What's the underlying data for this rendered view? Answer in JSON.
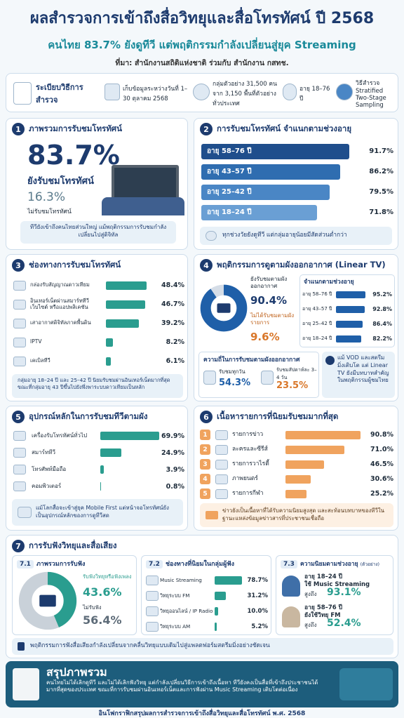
{
  "header": {
    "title": "ผลสำรวจการเข้าถึงสื่อวิทยุและสื่อโทรทัศน์ ปี 2568",
    "subtitle": "คนไทย 83.7% ยังดูทีวี แต่พฤติกรรมกำลังเปลี่ยนสู่ยุค Streaming",
    "source": "ที่มา: สำนักงานสถิติแห่งชาติ ร่วมกับ สำนักงาน กสทช."
  },
  "method": {
    "label": "ระเบียบวิธีการสำรวจ",
    "items": [
      "เก็บข้อมูลระหว่างวันที่ 1–30 ตุลาคม 2568",
      "กลุ่มตัวอย่าง 31,500 คน จาก 3,150 พื้นที่ตัวอย่างทั่วประเทศ",
      "อายุ 18–76 ปี",
      "วิธีสำรวจ Stratified Two-Stage Sampling"
    ]
  },
  "overview": {
    "number": "1",
    "title": "ภาพรวมการรับชมโทรทัศน์",
    "watch": "83.7%",
    "watch_text": "ยังรับชมโทรทัศน์",
    "not_watch": "16.3%",
    "not_watch_text": "ไม่รับชมโทรทัศน์",
    "note": "ทีวียังเข้าถึงคนไทยส่วนใหญ่ แม้พฤติกรรมการรับชมกำลังเปลี่ยนไปสู่ดิจิทัล"
  },
  "by_age": {
    "number": "2",
    "title": "การรับชมโทรทัศน์ จำแนกตามช่วงอายุ",
    "colors": [
      "#1f4e8c",
      "#2f6db0",
      "#4a86c5",
      "#6a9fd4"
    ],
    "bars": [
      {
        "label": "อายุ 58–76 ปี",
        "value": 91.7,
        "value_label": "91.7%"
      },
      {
        "label": "อายุ 43–57 ปี",
        "value": 86.2,
        "value_label": "86.2%"
      },
      {
        "label": "อายุ 25–42 ปี",
        "value": 79.5,
        "value_label": "79.5%"
      },
      {
        "label": "อายุ 18–24 ปี",
        "value": 71.8,
        "value_label": "71.8%"
      }
    ],
    "note": "ทุกช่วงวัยยังดูทีวี แต่กลุ่มอายุน้อยมีสัดส่วนต่ำกว่า"
  },
  "channels": {
    "number": "3",
    "title": "ช่องทางการรับชมโทรทัศน์",
    "color": "#2a9d8f",
    "bars": [
      {
        "label": "กล่องรับสัญญาณดาวเทียม",
        "value": 48.4,
        "value_label": "48.4%"
      },
      {
        "label": "อินเทอร์เน็ตผ่านสมาร์ททีวี เว็บไซต์ หรือแอปพลิเคชัน",
        "value": 46.7,
        "value_label": "46.7%"
      },
      {
        "label": "เสาอากาศดิจิทัลภาคพื้นดิน",
        "value": 39.2,
        "value_label": "39.2%"
      },
      {
        "label": "IPTV",
        "value": 8.2,
        "value_label": "8.2%"
      },
      {
        "label": "เคเบิลทีวี",
        "value": 6.1,
        "value_label": "6.1%"
      }
    ],
    "note": "กลุ่มอายุ 18–24 ปี และ 25–42 ปี นิยมรับชมผ่านอินเทอร์เน็ตมากที่สุด ขณะที่กลุ่มอายุ 43 ปีขึ้นไปยังพึ่งพาระบบดาวเทียมเป็นหลัก"
  },
  "linear": {
    "number": "4",
    "title": "พฤติกรรมการดูตามผังออกอากาศ (Linear TV)",
    "share_text": "ยังรับชมตามผังออกอากาศ",
    "share": {
      "value": 90.4,
      "label": "90.4%"
    },
    "other_text": "ไม่ได้รับชมตามผังรายการ",
    "other": {
      "value": 9.6,
      "label": "9.6%"
    },
    "colors": [
      "#1f5fa8",
      "#d5dde7"
    ],
    "age_title": "จำแนกตามช่วงอายุ",
    "age_color": "#1f5fa8",
    "age_bars": [
      {
        "label": "อายุ 58–76 ปี",
        "value": 95.2,
        "value_label": "95.2%"
      },
      {
        "label": "อายุ 43–57 ปี",
        "value": 92.8,
        "value_label": "92.8%"
      },
      {
        "label": "อายุ 25–42 ปี",
        "value": 86.4,
        "value_label": "86.4%"
      },
      {
        "label": "อายุ 18–24 ปี",
        "value": 82.2,
        "value_label": "82.2%"
      }
    ],
    "freq_title": "ความถี่ในการรับชมตามผังออกอากาศ",
    "freq": [
      {
        "label": "รับชมทุกวัน",
        "value": "54.3%"
      },
      {
        "label": "รับชมสัปดาห์ละ 3–4 วัน",
        "value": "23.5%"
      }
    ],
    "note": "แม้ VOD และสตรีมมิ่งเติบโต แต่ Linear TV ยังมีบทบาทสำคัญในพฤติกรรมผู้ชมไทย"
  },
  "devices": {
    "number": "5",
    "title": "อุปกรณ์หลักในการรับชมทีวีตามผัง",
    "color": "#2a9d8f",
    "bars": [
      {
        "label": "เครื่องรับโทรทัศน์ทั่วไป",
        "value": 69.9,
        "value_label": "69.9%"
      },
      {
        "label": "สมาร์ททีวี",
        "value": 24.9,
        "value_label": "24.9%"
      },
      {
        "label": "โทรศัพท์มือถือ",
        "value": 3.9,
        "value_label": "3.9%"
      },
      {
        "label": "คอมพิวเตอร์",
        "value": 0.8,
        "value_label": "0.8%"
      }
    ],
    "note": "แม้โลกสื่อจะเข้าสู่ยุค Mobile First แต่หน้าจอโทรทัศน์ยังเป็นอุปกรณ์หลักของการดูทีวีสด"
  },
  "content": {
    "number": "6",
    "title": "เนื้อหารายการที่นิยมรับชมมากที่สุด",
    "color": "#f0a35e",
    "bars": [
      {
        "rank": "1",
        "label": "รายการข่าว",
        "value": 90.8,
        "value_label": "90.8%"
      },
      {
        "rank": "2",
        "label": "ละครและซีรีส์",
        "value": 71.0,
        "value_label": "71.0%"
      },
      {
        "rank": "3",
        "label": "รายการวาไรตี้",
        "value": 46.5,
        "value_label": "46.5%"
      },
      {
        "rank": "4",
        "label": "ภาพยนตร์",
        "value": 30.6,
        "value_label": "30.6%"
      },
      {
        "rank": "5",
        "label": "รายการกีฬา",
        "value": 25.2,
        "value_label": "25.2%"
      }
    ],
    "note": "ข่าวยังเป็นเนื้อหาที่ได้รับความนิยมสูงสุด และสะท้อนบทบาทของทีวีในฐานะแหล่งข้อมูลข่าวสารที่ประชาชนเชื่อถือ"
  },
  "radio": {
    "number": "7",
    "title": "การรับฟังวิทยุและสื่อเสียง",
    "overview": {
      "number": "7.1",
      "title": "ภาพรวมการรับฟัง",
      "listen_text": "รับฟังวิทยุหรือฟังเพลง",
      "listen": {
        "value": 43.6,
        "label": "43.6%"
      },
      "not_listen_text": "ไม่รับฟัง",
      "not_listen": {
        "value": 56.4,
        "label": "56.4%"
      },
      "colors": [
        "#2a9d8f",
        "#c9d1d9"
      ]
    },
    "channels": {
      "number": "7.2",
      "title": "ช่องทางที่นิยมในกลุ่มผู้ฟัง",
      "color": "#2a9d8f",
      "bars": [
        {
          "label": "Music Streaming",
          "value": 78.7,
          "value_label": "78.7%"
        },
        {
          "label": "วิทยุระบบ FM",
          "value": 31.2,
          "value_label": "31.2%"
        },
        {
          "label": "วิทยุออนไลน์ / IP Radio",
          "value": 10.0,
          "value_label": "10.0%"
        },
        {
          "label": "วิทยุระบบ AM",
          "value": 5.2,
          "value_label": "5.2%"
        }
      ]
    },
    "by_age": {
      "number": "7.3",
      "title": "ความนิยมตามช่วงอายุ",
      "title_note": "(ตัวอย่าง)",
      "items": [
        {
          "group": "อายุ 18–24 ปี",
          "action": "ใช้ Music Streaming",
          "prefix": "สูงถึง",
          "value": "93.1%"
        },
        {
          "group": "อายุ 58–76 ปี",
          "action": "ยังใช้วิทยุ FM",
          "prefix": "สูงถึง",
          "value": "52.4%"
        }
      ]
    },
    "note": "พฤติกรรมการฟังสื่อเสียงกำลังเปลี่ยนจากคลื่นวิทยุแบบเดิมไปสู่แพลตฟอร์มสตรีมมิ่งอย่างชัดเจน"
  },
  "summary": {
    "title": "สรุปภาพรวม",
    "text": "คนไทยไม่ได้เลิกดูทีวี และไม่ได้เลิกฟังวิทยุ แต่กำลังเปลี่ยนวิธีการเข้าถึงเนื้อหา ทีวียังคงเป็นสื่อที่เข้าถึงประชาชนได้มากที่สุดของประเทศ ขณะที่การรับชมผ่านอินเทอร์เน็ตและการฟังผ่าน Music Streaming เติบโตต่อเนื่อง"
  },
  "footer": "อินโฟกราฟิกสรุปผลการสำรวจการเข้าถึงสื่อวิทยุและสื่อโทรทัศน์ พ.ศ. 2568"
}
